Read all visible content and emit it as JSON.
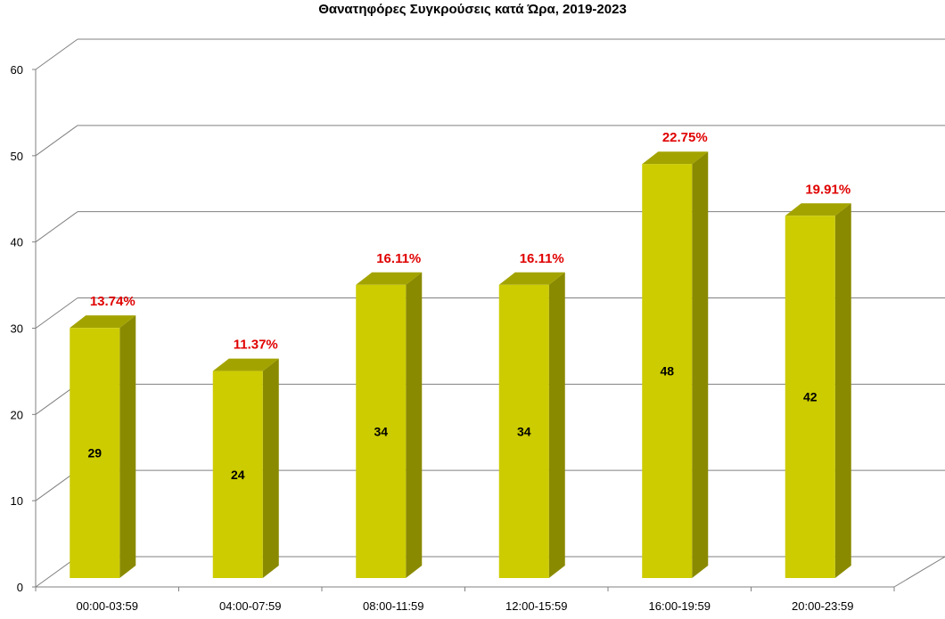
{
  "chart_data": {
    "type": "bar",
    "title": "Θανατηφόρες Συγκρούσεις κατά Ώρα, 2019-2023",
    "categories": [
      "00:00-03:59",
      "04:00-07:59",
      "08:00-11:59",
      "12:00-15:59",
      "16:00-19:59",
      "20:00-23:59"
    ],
    "values": [
      29,
      24,
      34,
      34,
      48,
      42
    ],
    "percent_labels": [
      "13.74%",
      "11.37%",
      "16.11%",
      "16.11%",
      "22.75%",
      "19.91%"
    ],
    "ylim": [
      0,
      60
    ],
    "yticks": [
      0,
      10,
      20,
      30,
      40,
      50,
      60
    ],
    "grid": true,
    "legend": "none",
    "colors": {
      "bar_front": "#cccc00",
      "bar_side": "#8a8a00",
      "bar_top": "#a3a300",
      "percent_label": "#e00000",
      "grid": "#808080"
    }
  }
}
